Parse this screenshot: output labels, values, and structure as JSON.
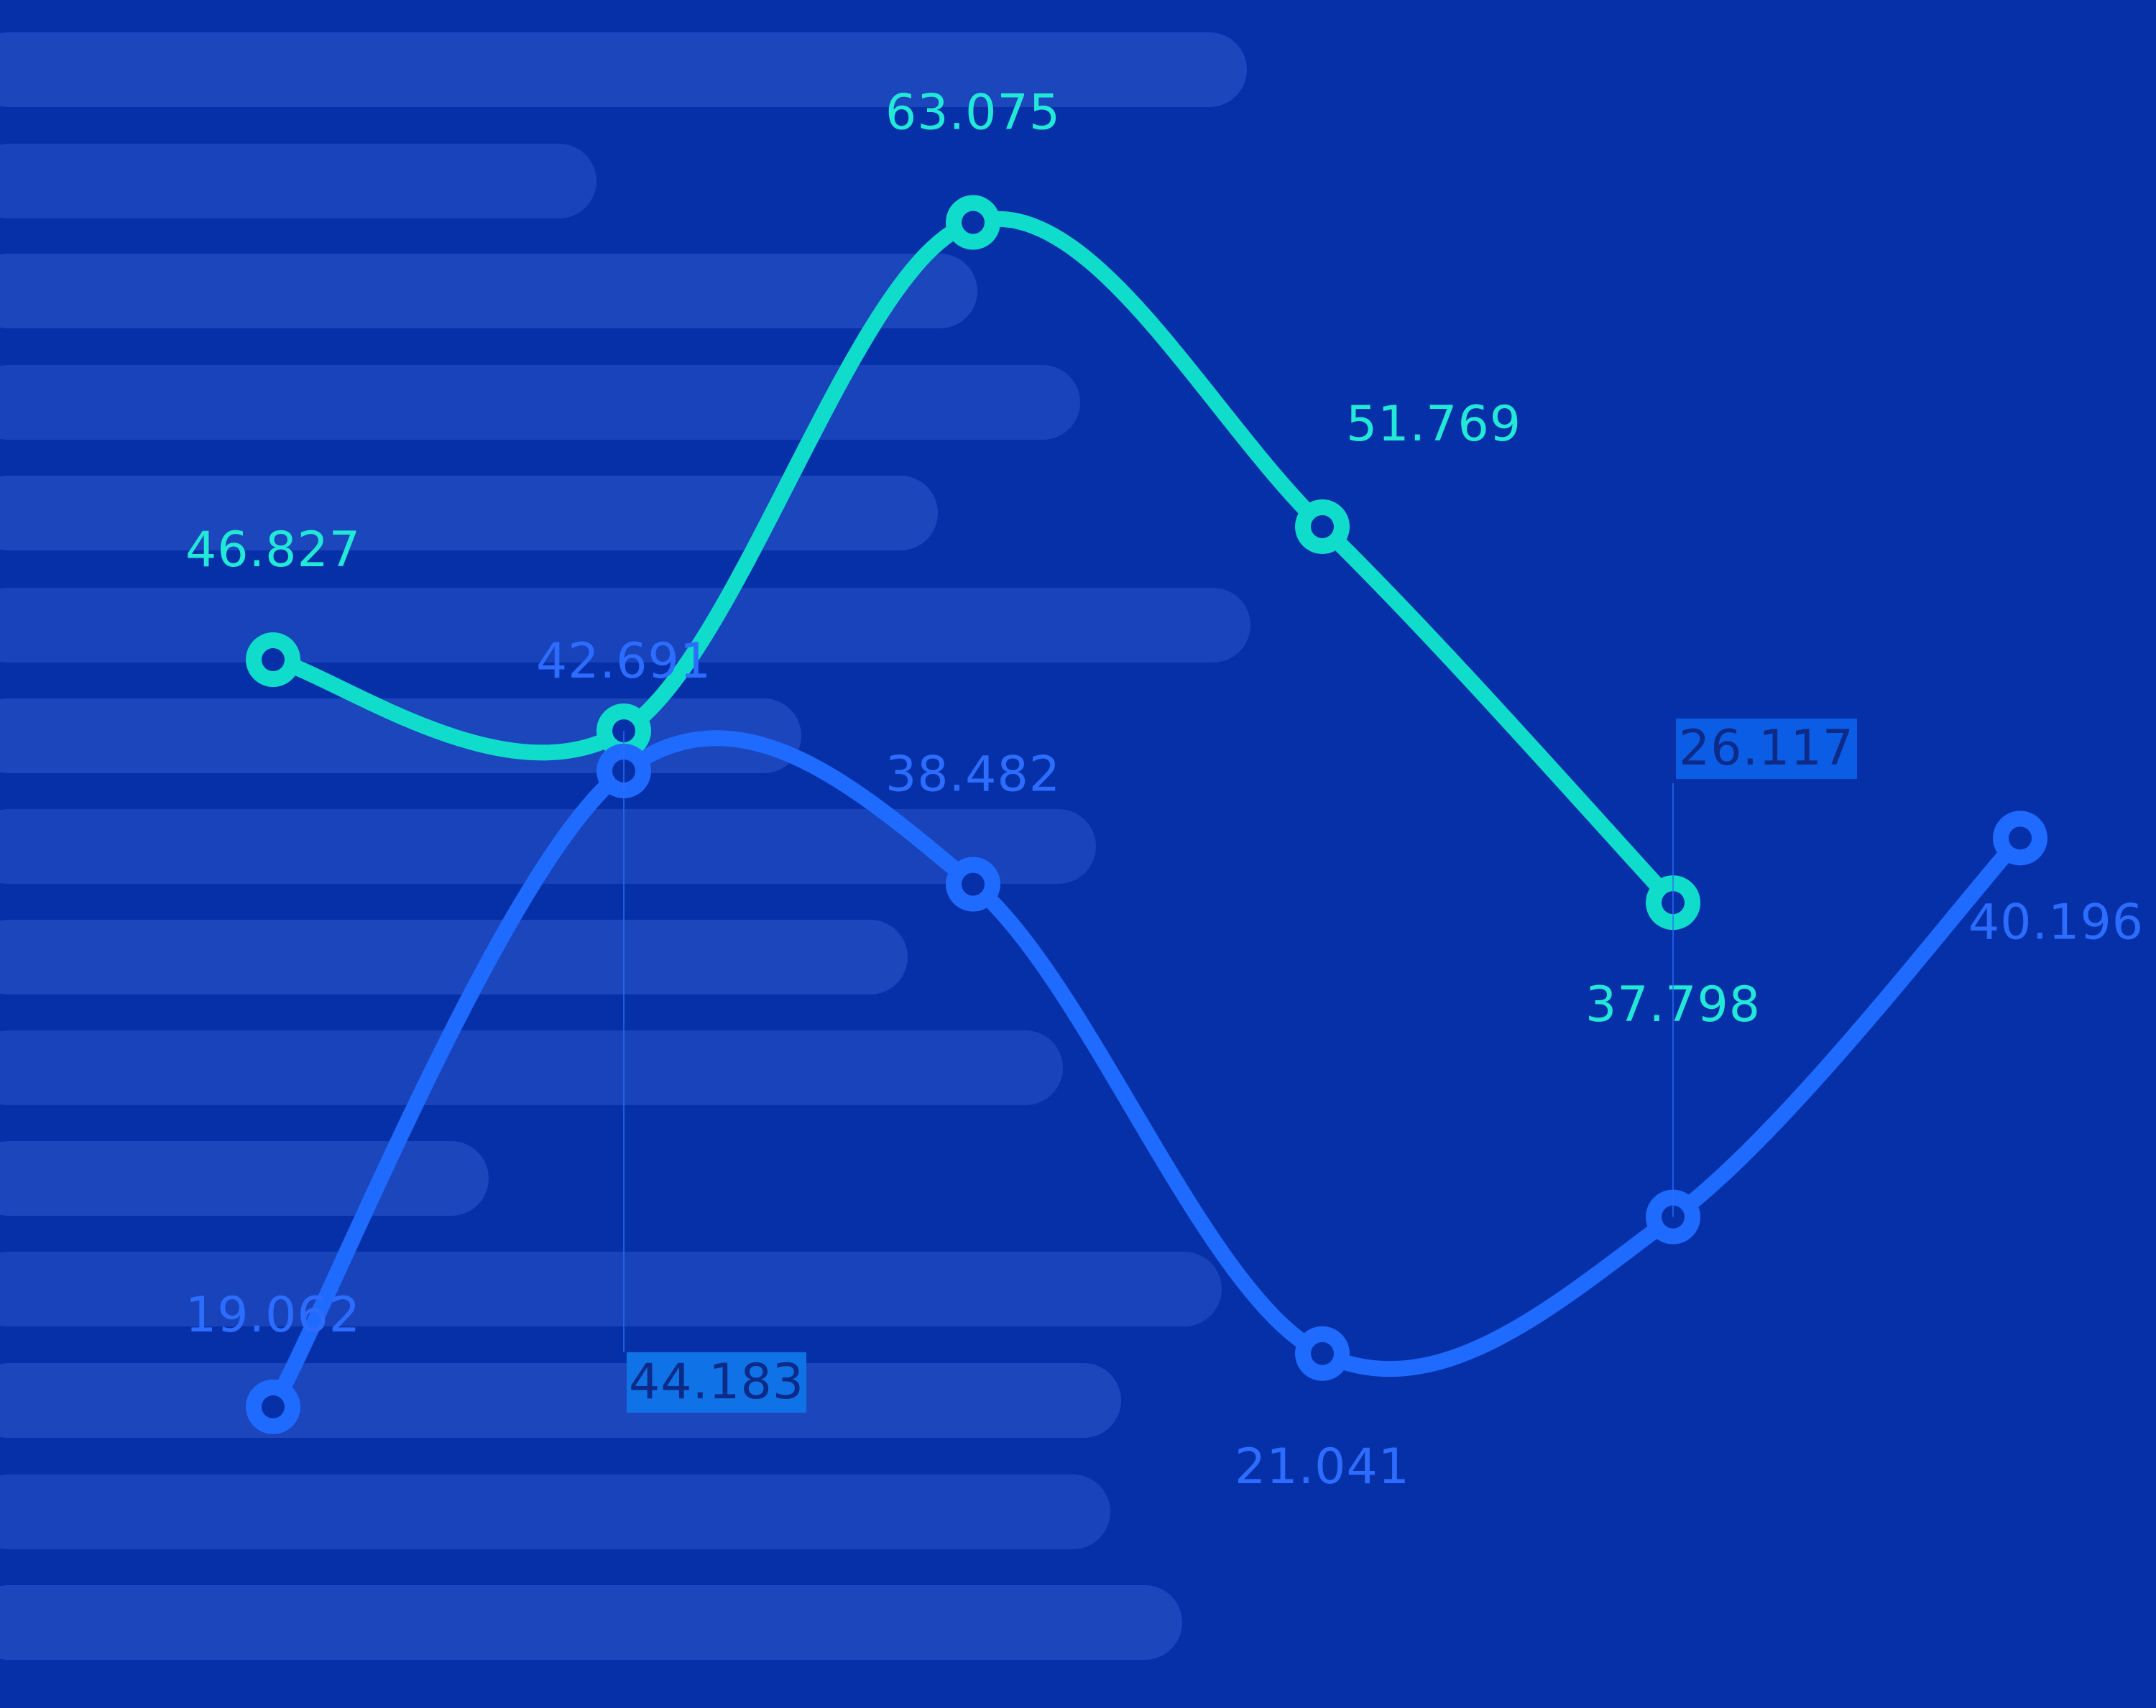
{
  "chart_data": {
    "type": "line",
    "x": [
      0,
      1,
      2,
      3,
      4,
      5,
      6,
      7
    ],
    "series": [
      {
        "values": [
          46.827,
          44.183,
          63.075,
          51.769,
          37.798,
          null,
          null,
          null
        ],
        "labels": [
          "46.827",
          "44.183",
          "63.075",
          "51.769",
          "37.798",
          "",
          "",
          ""
        ]
      },
      {
        "values": [
          19.062,
          42.691,
          38.482,
          21.041,
          26.117,
          40.196,
          null,
          null
        ],
        "labels": [
          "19.062",
          "42.691",
          "38.482",
          "21.041",
          "26.117",
          "40.196",
          "",
          ""
        ]
      }
    ],
    "title": "",
    "xlabel": "",
    "ylabel": "",
    "legend": "none",
    "grid": false
  },
  "colors": {
    "background": "#0630a8",
    "bar": "#2f5bd0",
    "teal": "#10dccc",
    "blue": "#1f6bff",
    "text_teal": "#22e8d8",
    "text_blue": "#2c6dff",
    "label_box_blue": "#0c5de6",
    "label_box_text": "#0c2a88"
  }
}
